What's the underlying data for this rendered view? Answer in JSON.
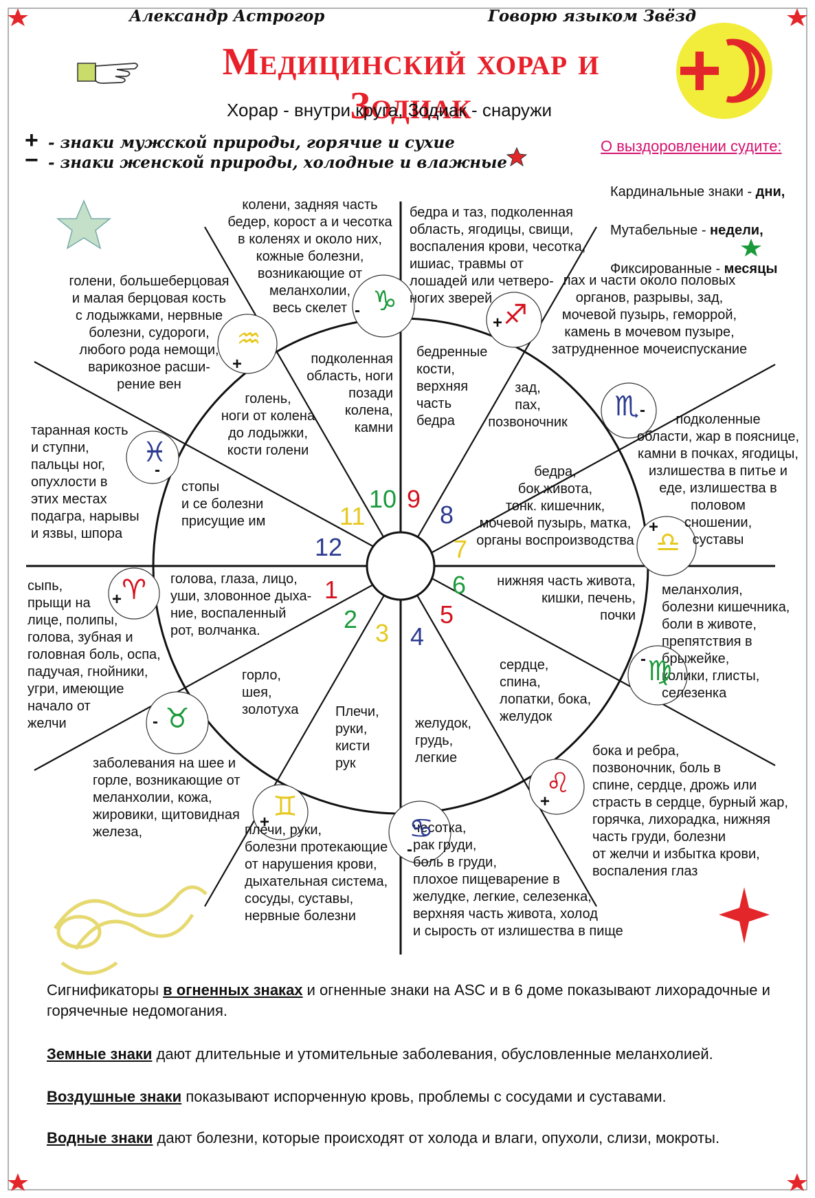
{
  "header": {
    "author": "Александр Астрогор",
    "series": "Говорю языком Звёзд",
    "title": "Медицинский хорар и Зодиак",
    "subtitle": "Хорар - внутри круга, Зодиак - снаружи"
  },
  "legend": {
    "plus_symbol": "+",
    "plus_text": "- знаки мужской природы, горячие и сухие",
    "minus_symbol": "−",
    "minus_text": "- знаки женской природы, холодные и влажные"
  },
  "recovery": {
    "title": "О выздоровлении судите:",
    "items": [
      {
        "label": "Кардинальные знаки - ",
        "value": "дни,"
      },
      {
        "label": "Мутабельные - ",
        "value": "недели,"
      },
      {
        "label": "Фиксированные - ",
        "value": "месяцы"
      }
    ]
  },
  "houses": [
    {
      "number": "1",
      "color": "#d4111d",
      "text": "голова, глаза, лицо,\nуши, зловонное дыха-\nние, воспаленный\nрот, волчанка."
    },
    {
      "number": "2",
      "color": "#1a9a3a",
      "text": "горло,\nшея,\nзолотуха"
    },
    {
      "number": "3",
      "color": "#e6c81e",
      "text": "Плечи,\nруки,\nкисти\nрук"
    },
    {
      "number": "4",
      "color": "#2b3a8f",
      "text": "желудок,\nгрудь,\nлегкие"
    },
    {
      "number": "5",
      "color": "#d4111d",
      "text": "сердце,\nспина,\nлопатки, бока,\nжелудок"
    },
    {
      "number": "6",
      "color": "#1a9a3a",
      "text": "нижняя часть живота,\nкишки, печень,\nпочки"
    },
    {
      "number": "7",
      "color": "#e6c81e",
      "text": "бедра,\nбок живота,\nтонк. кишечник,\nмочевой пузырь, матка,\nорганы воспроизводства"
    },
    {
      "number": "8",
      "color": "#2b3a8f",
      "text": "зад,\nпах,\nпозвоночник"
    },
    {
      "number": "9",
      "color": "#d4111d",
      "text": "бедренные\nкости,\nверхняя\nчасть\nбедра"
    },
    {
      "number": "10",
      "color": "#1a9a3a",
      "text": "подколенная\nобласть, ноги\nпозади\nколена,\nкамни"
    },
    {
      "number": "11",
      "color": "#e6c81e",
      "text": "голень,\nноги от колена\nдо лодыжки,\nкости голени"
    },
    {
      "number": "12",
      "color": "#2b3a8f",
      "text": "стопы\nи се болезни\nприсущие им"
    }
  ],
  "signs": [
    {
      "name": "aries",
      "glyph": "♈",
      "polarity": "+",
      "color": "#d4111d",
      "text": "сыпь,\nпрыщи на\nлице, полипы,\nголова, зубная и\nголовная боль, оспа,\nпадучая, гнойники,\nугри, имеющие\nначало от\nжелчи"
    },
    {
      "name": "taurus",
      "glyph": "♉",
      "polarity": "-",
      "color": "#1a9a3a",
      "text": "заболевания на шее и\n  горле, возникающие от\nмеланхолии, кожа,\nжировики, щитовидная\nжелеза,"
    },
    {
      "name": "gemini",
      "glyph": "♊",
      "polarity": "+",
      "color": "#e6c81e",
      "text": "плечи, руки,\nболезни протекающие\nот нарушения крови,\nдыхательная система,\nсосуды, суставы,\nнервные болезни"
    },
    {
      "name": "cancer",
      "glyph": "♋",
      "polarity": "-",
      "color": "#2b3a8f",
      "text": "чесотка,\nрак груди,\nболь в груди,\nплохое пищеварение в\nжелудке, легкие, селезенка,\nверхняя часть живота, холод\nи сырость от излишества в пище"
    },
    {
      "name": "leo",
      "glyph": "♌",
      "polarity": "+",
      "color": "#d4111d",
      "text": "бока и  ребра,\nпозвоночник, боль в\nспине, сердце, дрожь или\nстрасть в сердце, бурный жар,\nгорячка, лихорадка, нижняя\nчасть  груди, болезни\nот желчи и избытка крови,\n   воспаления глаз"
    },
    {
      "name": "virgo",
      "glyph": "♍",
      "polarity": "-",
      "color": "#1a9a3a",
      "text": "меланхолия,\nболезни кишечника,\nболи в животе,\nпрепятствия в\n  брыжейке,\n  колики, глисты,\n  селезенка"
    },
    {
      "name": "libra",
      "glyph": "♎",
      "polarity": "+",
      "color": "#e6c81e",
      "text": "подколенные\nобласти, жар в пояснице,\nкамни в почках, ягодицы,\nизлишества в питье и\nеде, излишества в\nполовом\nсношении,\nсуставы"
    },
    {
      "name": "scorpio",
      "glyph": "♏",
      "polarity": "-",
      "color": "#2b3a8f",
      "text": "пах и части около половых\nорганов, разрывы, зад,\nмочевой пузырь, геморрой,\nкамень в мочевом пузыре,\nзатрудненное мочеиспускание"
    },
    {
      "name": "sagittarius",
      "glyph": "♐",
      "polarity": "+",
      "color": "#d4111d",
      "text": "бедра и таз, подколенная\nобласть, ягодицы, свищи,\nвоспаления крови, чесотка,\nишиас, травмы от\nлошадей или четверо-\nногих зверей"
    },
    {
      "name": "capricorn",
      "glyph": "♑",
      "polarity": "-",
      "color": "#1a9a3a",
      "text": "колени, задняя часть\nбедер, корост а и чесотка\nв коленях и около них,\nкожные болезни,\nвозникающие от\nмеланхолии,\nвесь скелет"
    },
    {
      "name": "aquarius",
      "glyph": "♒",
      "polarity": "+",
      "color": "#e6c81e",
      "text": "голени, большеберцовая\nи малая берцовая кость\nс лодыжками, нервные\nболезни, судороги,\nлюбого рода немощи,\nварикозное расши-\nрение вен"
    },
    {
      "name": "pisces",
      "glyph": "♓",
      "polarity": "-",
      "color": "#2b3a8f",
      "text": "таранная кость\nи ступни,\nпальцы ног,\nопухлости в\nэтих местах\nподагра, нарывы\nи язвы, шпора"
    }
  ],
  "footer": [
    {
      "lead": "Сигнификаторы ",
      "em": "в огненных знаках",
      "rest": " и огненные знаки на ASC и в 6 доме показывают лихорадочные и горячечные недомогания."
    },
    {
      "lead": "",
      "em": "Земные знаки",
      "rest": " дают длительные и утомительные заболевания, обусловленные меланхолией."
    },
    {
      "lead": "",
      "em": "Воздушные знаки",
      "rest": " показывают испорченную кровь, проблемы с сосудами и суставами."
    },
    {
      "lead": "",
      "em": "Водные знаки",
      "rest": " дают болезни, которые происходят от холода и влаги, опухоли, слизи, мокроты."
    }
  ]
}
